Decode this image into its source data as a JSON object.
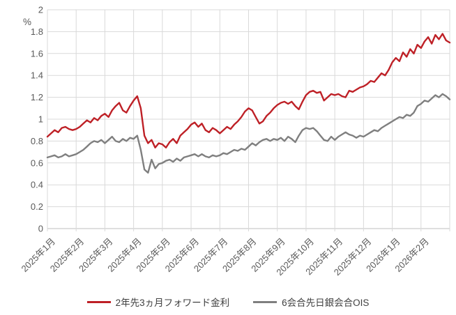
{
  "chart_data": {
    "type": "line",
    "title": "",
    "xlabel": "",
    "ylabel": "%",
    "grid": true,
    "legend_position": "bottom",
    "ylim": [
      0,
      2
    ],
    "y_ticks": [
      0,
      0.2,
      0.4,
      0.6,
      0.8,
      1,
      1.2,
      1.4,
      1.6,
      1.8,
      2
    ],
    "y_tick_labels": [
      "0",
      "0.2",
      "0.4",
      "0.6",
      "0.8",
      "1",
      "1.2",
      "1.4",
      "1.6",
      "1.8",
      "2"
    ],
    "x_categories": [
      "2025年1月",
      "2025年2月",
      "2025年3月",
      "2025年4月",
      "2025年5月",
      "2025年6月",
      "2025年7月",
      "2025年8月",
      "2025年9月",
      "2025年10月",
      "2025年11月",
      "2025年12月",
      "2026年1月",
      "2026年2月"
    ],
    "x_tick_count": 15,
    "x_range_months": [
      0,
      14
    ],
    "series": [
      {
        "name": "2年先3ヵ月フォワード金利",
        "color": "#be2026",
        "values": [
          0.84,
          0.87,
          0.9,
          0.88,
          0.92,
          0.93,
          0.91,
          0.9,
          0.91,
          0.93,
          0.96,
          0.99,
          0.97,
          1.01,
          0.99,
          1.03,
          1.05,
          1.02,
          1.08,
          1.12,
          1.15,
          1.08,
          1.06,
          1.12,
          1.17,
          1.21,
          1.1,
          0.85,
          0.78,
          0.81,
          0.74,
          0.78,
          0.77,
          0.74,
          0.79,
          0.82,
          0.78,
          0.85,
          0.88,
          0.91,
          0.95,
          0.97,
          0.93,
          0.96,
          0.9,
          0.88,
          0.92,
          0.9,
          0.87,
          0.9,
          0.93,
          0.91,
          0.95,
          0.98,
          1.02,
          1.07,
          1.1,
          1.08,
          1.02,
          0.96,
          0.98,
          1.03,
          1.06,
          1.1,
          1.13,
          1.15,
          1.16,
          1.14,
          1.16,
          1.12,
          1.09,
          1.16,
          1.22,
          1.25,
          1.26,
          1.24,
          1.25,
          1.17,
          1.2,
          1.23,
          1.22,
          1.23,
          1.21,
          1.2,
          1.26,
          1.25,
          1.27,
          1.29,
          1.3,
          1.32,
          1.35,
          1.34,
          1.38,
          1.42,
          1.4,
          1.45,
          1.52,
          1.56,
          1.53,
          1.61,
          1.57,
          1.64,
          1.6,
          1.68,
          1.65,
          1.71,
          1.75,
          1.69,
          1.77,
          1.73,
          1.78,
          1.72,
          1.7
        ]
      },
      {
        "name": "6会合先日銀会合OIS",
        "color": "#7f7f7f",
        "values": [
          0.65,
          0.66,
          0.67,
          0.65,
          0.66,
          0.68,
          0.66,
          0.67,
          0.68,
          0.7,
          0.72,
          0.75,
          0.78,
          0.8,
          0.79,
          0.81,
          0.78,
          0.81,
          0.84,
          0.8,
          0.79,
          0.82,
          0.8,
          0.83,
          0.82,
          0.85,
          0.72,
          0.54,
          0.51,
          0.63,
          0.55,
          0.59,
          0.6,
          0.62,
          0.63,
          0.61,
          0.64,
          0.62,
          0.65,
          0.66,
          0.67,
          0.68,
          0.66,
          0.68,
          0.66,
          0.65,
          0.67,
          0.66,
          0.67,
          0.69,
          0.68,
          0.7,
          0.72,
          0.71,
          0.73,
          0.72,
          0.75,
          0.78,
          0.76,
          0.79,
          0.81,
          0.82,
          0.8,
          0.82,
          0.81,
          0.83,
          0.8,
          0.84,
          0.82,
          0.79,
          0.85,
          0.9,
          0.92,
          0.91,
          0.92,
          0.89,
          0.85,
          0.81,
          0.8,
          0.84,
          0.81,
          0.84,
          0.86,
          0.88,
          0.86,
          0.85,
          0.83,
          0.85,
          0.84,
          0.86,
          0.88,
          0.9,
          0.89,
          0.92,
          0.94,
          0.96,
          0.98,
          1.0,
          1.02,
          1.01,
          1.04,
          1.03,
          1.06,
          1.12,
          1.14,
          1.17,
          1.16,
          1.19,
          1.22,
          1.2,
          1.23,
          1.21,
          1.18
        ]
      }
    ],
    "colors": {
      "grid": "#d9d9d9",
      "axis": "#bfbfbf",
      "tick_text": "#595959"
    }
  }
}
